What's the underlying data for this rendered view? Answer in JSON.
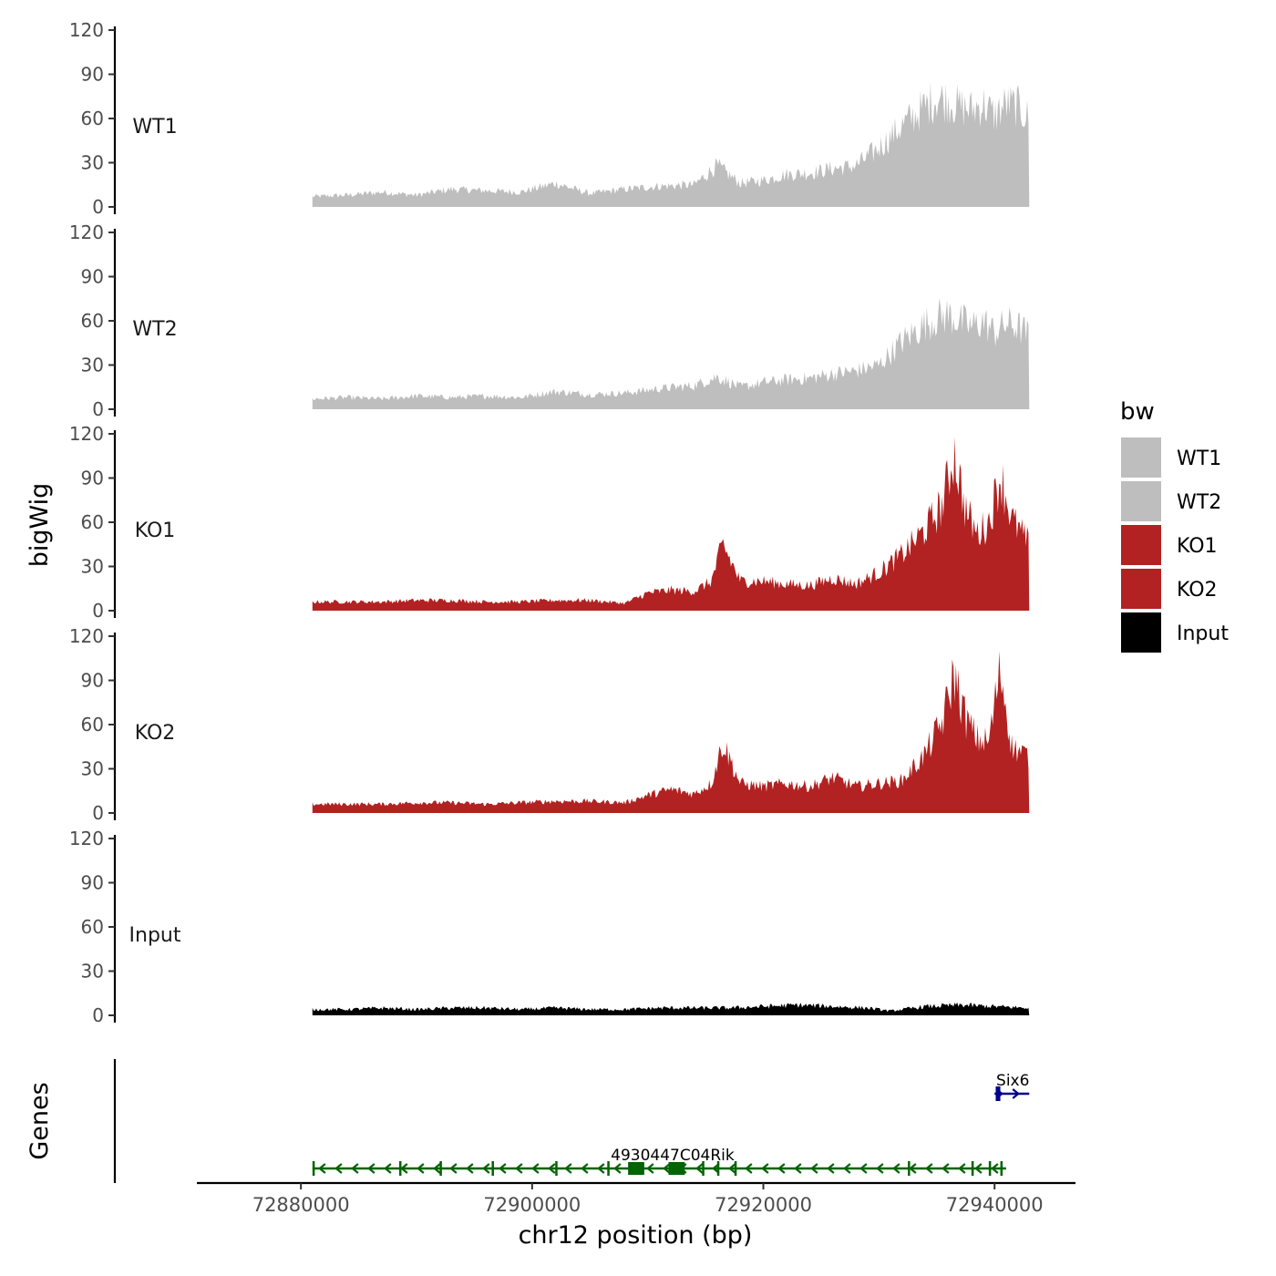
{
  "chart_data": {
    "type": "area",
    "title": "",
    "xlabel": "chr12 position (bp)",
    "ylabel": "bigWig",
    "genes_label": "Genes",
    "xlim": [
      72871000,
      72947000
    ],
    "x_ticks": [
      72880000,
      72900000,
      72920000,
      72940000
    ],
    "x_tick_labels": [
      "72880000",
      "72900000",
      "72920000",
      "72940000"
    ],
    "ylim": [
      0,
      120
    ],
    "y_ticks": [
      0,
      30,
      60,
      90,
      120
    ],
    "y_tick_labels": [
      "0",
      "30",
      "60",
      "90",
      "120"
    ],
    "colors": {
      "WT1": "#bebebe",
      "WT2": "#bebebe",
      "KO1": "#b22222",
      "KO2": "#b22222",
      "Input": "#000000",
      "gene_minus": "#006400",
      "gene_plus": "#00008b"
    },
    "legend": {
      "title": "bw",
      "position": "right",
      "entries": [
        "WT1",
        "WT2",
        "KO1",
        "KO2",
        "Input"
      ]
    },
    "series": [
      {
        "name": "WT1",
        "x": [
          72881000,
          72884000,
          72887000,
          72890000,
          72893000,
          72896000,
          72899000,
          72902000,
          72905000,
          72908000,
          72911000,
          72914000,
          72916000,
          72918000,
          72920000,
          72922000,
          72924000,
          72926000,
          72928000,
          72930000,
          72932000,
          72934000,
          72935000,
          72936000,
          72937000,
          72938000,
          72939000,
          72940000,
          72941000,
          72942000,
          72943000
        ],
        "values": [
          7,
          8,
          10,
          8,
          12,
          11,
          10,
          16,
          9,
          12,
          14,
          15,
          28,
          16,
          18,
          22,
          23,
          26,
          28,
          40,
          55,
          68,
          74,
          72,
          68,
          66,
          70,
          62,
          70,
          68,
          60
        ]
      },
      {
        "name": "WT2",
        "x": [
          72881000,
          72884000,
          72887000,
          72890000,
          72893000,
          72896000,
          72899000,
          72902000,
          72905000,
          72908000,
          72911000,
          72914000,
          72916000,
          72918000,
          72920000,
          72922000,
          72924000,
          72926000,
          72928000,
          72930000,
          72932000,
          72934000,
          72935000,
          72936000,
          72937000,
          72938000,
          72939000,
          72940000,
          72941000,
          72942000,
          72943000
        ],
        "values": [
          7,
          8,
          7,
          9,
          8,
          9,
          8,
          12,
          10,
          11,
          14,
          16,
          22,
          15,
          18,
          20,
          21,
          24,
          26,
          30,
          46,
          58,
          62,
          64,
          60,
          56,
          60,
          52,
          58,
          56,
          50
        ]
      },
      {
        "name": "KO1",
        "x": [
          72881000,
          72884000,
          72887000,
          72890000,
          72893000,
          72896000,
          72899000,
          72902000,
          72905000,
          72908000,
          72910000,
          72912000,
          72914000,
          72915500,
          72916500,
          72918000,
          72920000,
          72922000,
          72924000,
          72926000,
          72928000,
          72930000,
          72932000,
          72934000,
          72935500,
          72936500,
          72937500,
          72938500,
          72939500,
          72940500,
          72941500,
          72943000
        ],
        "values": [
          6,
          6,
          6,
          7,
          7,
          6,
          6,
          7,
          7,
          5,
          12,
          14,
          13,
          20,
          45,
          20,
          20,
          18,
          17,
          22,
          18,
          26,
          38,
          55,
          72,
          108,
          68,
          52,
          60,
          92,
          62,
          45
        ]
      },
      {
        "name": "KO2",
        "x": [
          72881000,
          72884000,
          72887000,
          72890000,
          72893000,
          72896000,
          72899000,
          72902000,
          72905000,
          72908000,
          72910000,
          72912000,
          72914000,
          72915500,
          72916500,
          72918000,
          72920000,
          72922000,
          72924000,
          72926000,
          72928000,
          72930000,
          72932000,
          72934000,
          72935500,
          72936500,
          72937500,
          72938500,
          72939500,
          72940500,
          72941500,
          72943000
        ],
        "values": [
          6,
          6,
          6,
          7,
          7,
          6,
          7,
          8,
          8,
          7,
          12,
          16,
          13,
          20,
          48,
          20,
          18,
          20,
          18,
          24,
          18,
          20,
          22,
          40,
          62,
          95,
          64,
          50,
          48,
          98,
          45,
          38
        ]
      },
      {
        "name": "Input",
        "x": [
          72881000,
          72884000,
          72887000,
          72890000,
          72893000,
          72896000,
          72899000,
          72902000,
          72905000,
          72908000,
          72911000,
          72914000,
          72917000,
          72920000,
          72923000,
          72926000,
          72929000,
          72931000,
          72934000,
          72937000,
          72940000,
          72943000
        ],
        "values": [
          4,
          4,
          5,
          4,
          5,
          5,
          4,
          5,
          4,
          4,
          5,
          5,
          5,
          6,
          7,
          6,
          5,
          3,
          6,
          7,
          6,
          5
        ]
      }
    ],
    "genes": [
      {
        "name": "Six6",
        "start": 72940000,
        "end": 72943000,
        "strand": "+",
        "exons": [
          [
            72940100,
            72940500
          ]
        ]
      },
      {
        "name": "4930447C04Rik",
        "start": 72881000,
        "end": 72941000,
        "strand": "-",
        "exons": [
          [
            72881000,
            72881200
          ],
          [
            72888500,
            72888600
          ],
          [
            72892000,
            72892100
          ],
          [
            72896500,
            72896600
          ],
          [
            72902000,
            72902100
          ],
          [
            72906500,
            72906700
          ],
          [
            72908300,
            72909700
          ],
          [
            72911800,
            72913200
          ],
          [
            72914700,
            72914800
          ],
          [
            72916000,
            72916100
          ],
          [
            72917500,
            72917600
          ],
          [
            72932500,
            72932600
          ],
          [
            72938000,
            72938200
          ],
          [
            72939500,
            72939700
          ],
          [
            72940500,
            72940700
          ]
        ]
      }
    ]
  }
}
